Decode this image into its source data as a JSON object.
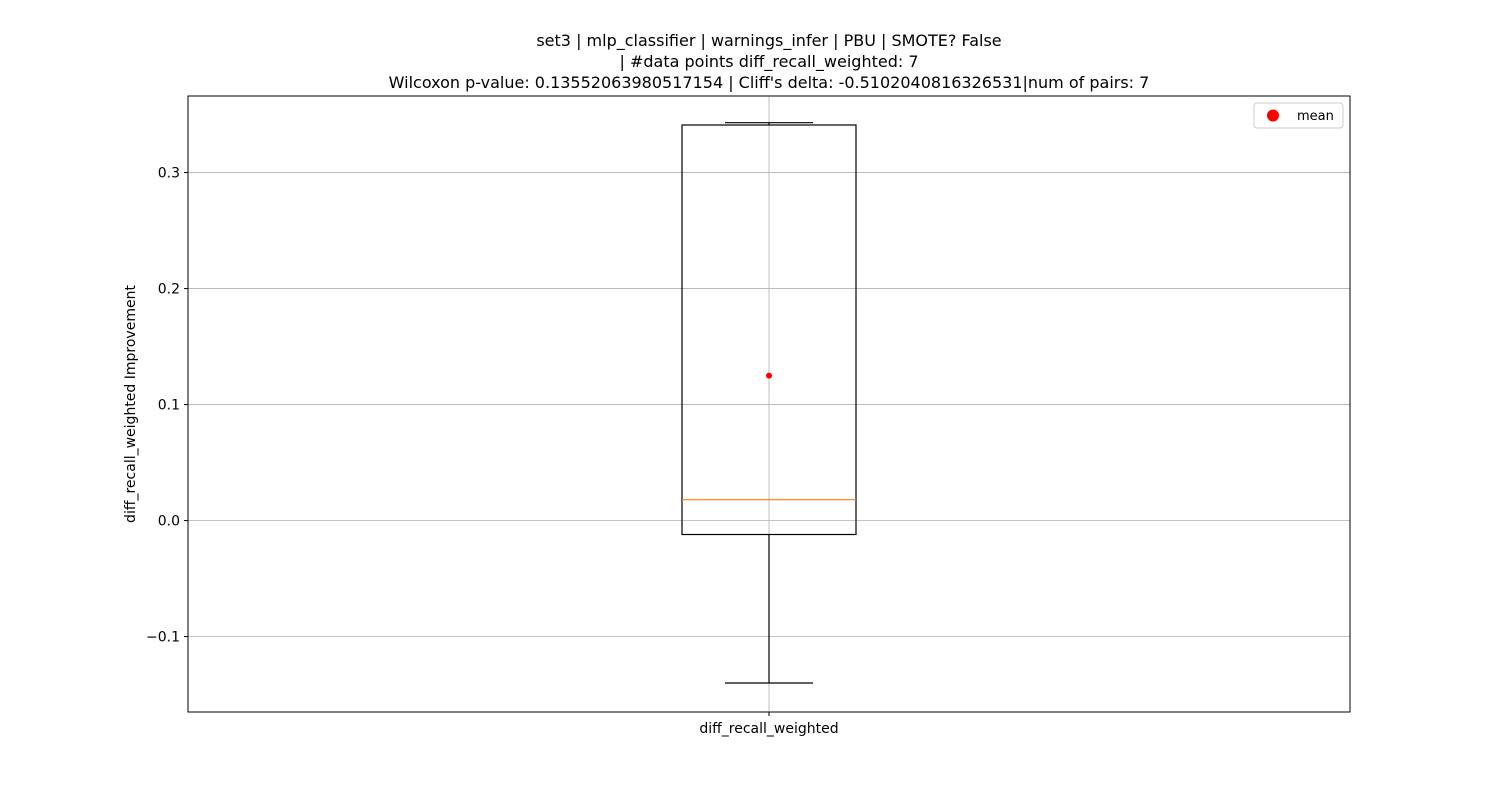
{
  "chart_data": {
    "type": "box",
    "title_lines": [
      "set3 | mlp_classifier | warnings_infer | PBU | SMOTE? False",
      "| #data points diff_recall_weighted: 7",
      "Wilcoxon p-value: 0.13552063980517154 | Cliff's delta: -0.5102040816326531|num of pairs: 7"
    ],
    "ylabel": "diff_recall_weighted Improvement",
    "categories": [
      "diff_recall_weighted"
    ],
    "ylim": [
      -0.165,
      0.366
    ],
    "yticks": [
      -0.1,
      0.0,
      0.1,
      0.2,
      0.3
    ],
    "ytick_labels": [
      "−0.1",
      "0.0",
      "0.1",
      "0.2",
      "0.3"
    ],
    "grid": true,
    "legend": {
      "position": "top-right",
      "entries": [
        "mean"
      ]
    },
    "boxes": [
      {
        "name": "diff_recall_weighted",
        "whisker_low": -0.14,
        "q1": -0.012,
        "median": 0.018,
        "q3": 0.341,
        "whisker_high": 0.343,
        "mean": 0.125
      }
    ],
    "colors": {
      "median": "#ff7f0e",
      "mean": "#ff0000",
      "box": "#000000",
      "grid": "#b0b0b0"
    }
  }
}
